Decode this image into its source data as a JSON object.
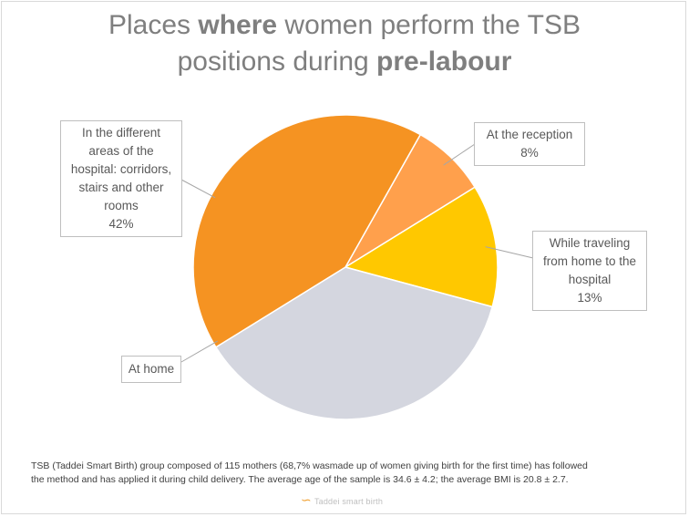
{
  "title": {
    "line1_a": "Places ",
    "line1_b": "where",
    "line1_c": " women perform the TSB",
    "line2_a": "positions during ",
    "line2_b": "pre-labour"
  },
  "chart_data": {
    "type": "pie",
    "slices": [
      {
        "label": "At the reception",
        "value": 8,
        "pct_label": "8%",
        "color": "#ffa04c"
      },
      {
        "label": "While traveling from home to the hospital",
        "value": 13,
        "pct_label": "13%",
        "color": "#ffc800"
      },
      {
        "label": "At home",
        "value": 37,
        "pct_label": "",
        "color": "#d4d6df"
      },
      {
        "label": "In the different areas of the hospital: corridors, stairs and other rooms",
        "value": 42,
        "pct_label": "42%",
        "color": "#f59322"
      }
    ]
  },
  "footer": {
    "line1": "TSB (Taddei Smart Birth) group composed of 115 mothers (68,7% wasmade up of women giving birth for the first time) has followed",
    "line2": "the method and has applied it during child delivery. The average age of the sample is 34.6 ± 4.2; the average BMI is 20.8 ± 2.7."
  },
  "logo": {
    "text": "Taddei smart birth"
  }
}
